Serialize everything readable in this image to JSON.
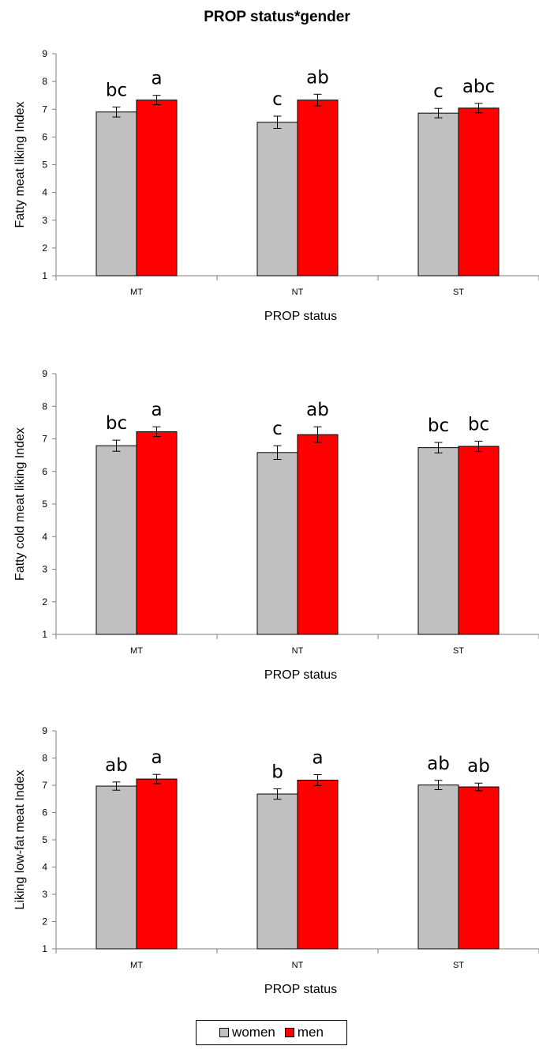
{
  "title": "PROP status*gender",
  "colors": {
    "women": "#c0c0c0",
    "men": "#ff0000"
  },
  "legend": [
    {
      "label": "women",
      "color": "#c0c0c0"
    },
    {
      "label": "men",
      "color": "#ff0000"
    }
  ],
  "chart_data": [
    {
      "type": "bar",
      "title": "PROP status*gender",
      "xlabel": "PROP status",
      "ylabel": "Fatty meat liking Index",
      "ylim": [
        1,
        9
      ],
      "yticks": [
        1,
        2,
        3,
        4,
        5,
        6,
        7,
        8,
        9
      ],
      "categories": [
        "MT",
        "NT",
        "ST"
      ],
      "series": [
        {
          "name": "women",
          "values": [
            6.9,
            6.53,
            6.86
          ],
          "errors": [
            0.18,
            0.22,
            0.17
          ],
          "letters": [
            "bc",
            "c",
            "c"
          ]
        },
        {
          "name": "men",
          "values": [
            7.33,
            7.33,
            7.04
          ],
          "errors": [
            0.17,
            0.21,
            0.17
          ],
          "letters": [
            "a",
            "ab",
            "abc"
          ]
        }
      ]
    },
    {
      "type": "bar",
      "xlabel": "PROP status",
      "ylabel": "Fatty cold meat liking Index",
      "ylim": [
        1,
        9
      ],
      "yticks": [
        1,
        2,
        3,
        4,
        5,
        6,
        7,
        8,
        9
      ],
      "categories": [
        "MT",
        "NT",
        "ST"
      ],
      "series": [
        {
          "name": "women",
          "values": [
            6.79,
            6.58,
            6.73
          ],
          "errors": [
            0.17,
            0.21,
            0.16
          ],
          "letters": [
            "bc",
            "c",
            "bc"
          ]
        },
        {
          "name": "men",
          "values": [
            7.22,
            7.13,
            6.77
          ],
          "errors": [
            0.15,
            0.24,
            0.16
          ],
          "letters": [
            "a",
            "ab",
            "bc"
          ]
        }
      ]
    },
    {
      "type": "bar",
      "xlabel": "PROP status",
      "ylabel": "Liking low-fat meat Index",
      "ylim": [
        1,
        9
      ],
      "yticks": [
        1,
        2,
        3,
        4,
        5,
        6,
        7,
        8,
        9
      ],
      "categories": [
        "MT",
        "NT",
        "ST"
      ],
      "series": [
        {
          "name": "women",
          "values": [
            6.97,
            6.68,
            7.01
          ],
          "errors": [
            0.15,
            0.19,
            0.17
          ],
          "letters": [
            "ab",
            "b",
            "ab"
          ]
        },
        {
          "name": "men",
          "values": [
            7.23,
            7.19,
            6.94
          ],
          "errors": [
            0.17,
            0.2,
            0.14
          ],
          "letters": [
            "a",
            "a",
            "ab"
          ]
        }
      ]
    }
  ]
}
